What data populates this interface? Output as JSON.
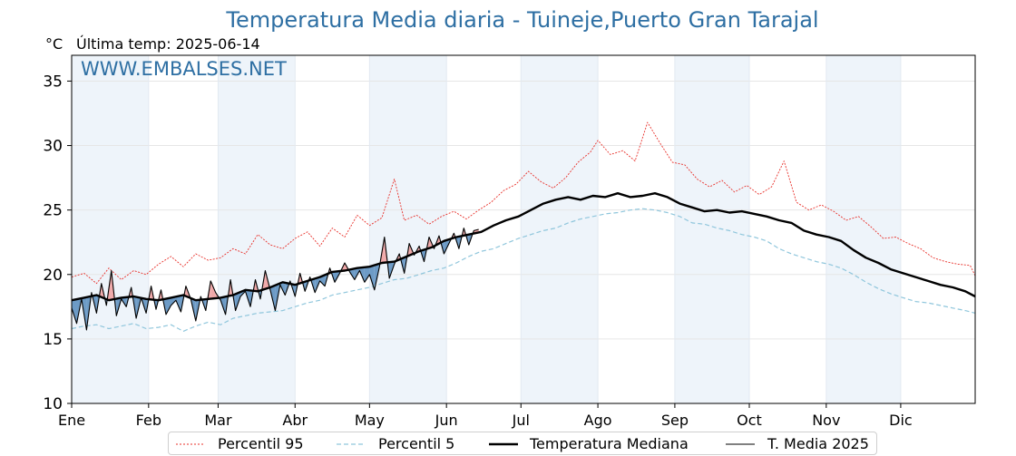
{
  "title": "Temperatura Media diaria - Tuineje,Puerto Gran Tarajal",
  "unit_label": "°C",
  "last_temp_label": "Última temp: 2025-06-14",
  "watermark": "WWW.EMBALSES.NET",
  "colors": {
    "title": "#2e6fa3",
    "p95": "#e8302a",
    "p5": "#8fc6dc",
    "median": "#000000",
    "current": "#000000",
    "fill_above": "#f0a8a8",
    "fill_below": "#6d9bc6",
    "band": "#eef4fa"
  },
  "legend": [
    {
      "label": "Percentil 95",
      "style": "p95"
    },
    {
      "label": "Percentil 5",
      "style": "p5"
    },
    {
      "label": "Temperatura Mediana",
      "style": "median"
    },
    {
      "label": "T. Media 2025",
      "style": "current"
    }
  ],
  "chart_data": {
    "type": "line",
    "title": "Temperatura Media diaria - Tuineje,Puerto Gran Tarajal",
    "ylabel": "°C",
    "ylim": [
      10,
      37
    ],
    "xlim": [
      1,
      365
    ],
    "yticks": [
      10,
      15,
      20,
      25,
      30,
      35
    ],
    "month_labels": [
      "Ene",
      "Feb",
      "Mar",
      "Abr",
      "May",
      "Jun",
      "Jul",
      "Ago",
      "Sep",
      "Oct",
      "Nov",
      "Dic"
    ],
    "month_start_days": [
      1,
      32,
      60,
      91,
      121,
      152,
      182,
      213,
      244,
      274,
      305,
      335
    ],
    "grid": true,
    "alternate_month_shading": true,
    "legend_position": "bottom",
    "series": [
      {
        "name": "Percentil 95",
        "style": "p95",
        "points": [
          [
            1,
            19.8
          ],
          [
            6,
            20.1
          ],
          [
            11,
            19.3
          ],
          [
            16,
            20.5
          ],
          [
            21,
            19.6
          ],
          [
            26,
            20.3
          ],
          [
            31,
            20.0
          ],
          [
            36,
            20.8
          ],
          [
            41,
            21.4
          ],
          [
            46,
            20.6
          ],
          [
            51,
            21.6
          ],
          [
            56,
            21.1
          ],
          [
            61,
            21.3
          ],
          [
            66,
            22.0
          ],
          [
            71,
            21.6
          ],
          [
            76,
            23.1
          ],
          [
            81,
            22.3
          ],
          [
            86,
            22.0
          ],
          [
            91,
            22.8
          ],
          [
            96,
            23.3
          ],
          [
            101,
            22.2
          ],
          [
            106,
            23.6
          ],
          [
            111,
            22.9
          ],
          [
            116,
            24.6
          ],
          [
            121,
            23.8
          ],
          [
            126,
            24.4
          ],
          [
            131,
            27.4
          ],
          [
            135,
            24.2
          ],
          [
            140,
            24.6
          ],
          [
            145,
            23.9
          ],
          [
            150,
            24.5
          ],
          [
            155,
            24.9
          ],
          [
            160,
            24.3
          ],
          [
            165,
            25.0
          ],
          [
            170,
            25.6
          ],
          [
            175,
            26.5
          ],
          [
            180,
            27.0
          ],
          [
            185,
            28.0
          ],
          [
            190,
            27.2
          ],
          [
            195,
            26.7
          ],
          [
            200,
            27.5
          ],
          [
            205,
            28.7
          ],
          [
            210,
            29.5
          ],
          [
            213,
            30.4
          ],
          [
            218,
            29.3
          ],
          [
            223,
            29.6
          ],
          [
            228,
            28.8
          ],
          [
            233,
            31.8
          ],
          [
            238,
            30.2
          ],
          [
            243,
            28.7
          ],
          [
            248,
            28.5
          ],
          [
            253,
            27.4
          ],
          [
            258,
            26.8
          ],
          [
            263,
            27.3
          ],
          [
            268,
            26.4
          ],
          [
            273,
            26.9
          ],
          [
            278,
            26.2
          ],
          [
            283,
            26.8
          ],
          [
            288,
            28.8
          ],
          [
            293,
            25.6
          ],
          [
            298,
            25.0
          ],
          [
            303,
            25.4
          ],
          [
            308,
            24.9
          ],
          [
            313,
            24.2
          ],
          [
            318,
            24.5
          ],
          [
            323,
            23.7
          ],
          [
            328,
            22.8
          ],
          [
            333,
            22.9
          ],
          [
            338,
            22.4
          ],
          [
            343,
            22.0
          ],
          [
            348,
            21.3
          ],
          [
            353,
            21.0
          ],
          [
            358,
            20.8
          ],
          [
            363,
            20.7
          ],
          [
            365,
            19.9
          ]
        ]
      },
      {
        "name": "Percentil 5",
        "style": "p5",
        "points": [
          [
            1,
            15.8
          ],
          [
            6,
            16.0
          ],
          [
            11,
            16.1
          ],
          [
            16,
            15.8
          ],
          [
            21,
            16.0
          ],
          [
            26,
            16.2
          ],
          [
            31,
            15.8
          ],
          [
            36,
            15.9
          ],
          [
            41,
            16.1
          ],
          [
            46,
            15.6
          ],
          [
            51,
            16.0
          ],
          [
            56,
            16.3
          ],
          [
            61,
            16.1
          ],
          [
            66,
            16.6
          ],
          [
            71,
            16.8
          ],
          [
            76,
            17.0
          ],
          [
            81,
            17.1
          ],
          [
            86,
            17.2
          ],
          [
            91,
            17.5
          ],
          [
            96,
            17.8
          ],
          [
            101,
            18.0
          ],
          [
            106,
            18.4
          ],
          [
            111,
            18.6
          ],
          [
            116,
            18.8
          ],
          [
            121,
            19.0
          ],
          [
            126,
            19.3
          ],
          [
            131,
            19.6
          ],
          [
            136,
            19.7
          ],
          [
            141,
            20.0
          ],
          [
            146,
            20.3
          ],
          [
            151,
            20.5
          ],
          [
            156,
            20.9
          ],
          [
            161,
            21.4
          ],
          [
            166,
            21.8
          ],
          [
            171,
            22.0
          ],
          [
            176,
            22.4
          ],
          [
            181,
            22.8
          ],
          [
            186,
            23.1
          ],
          [
            191,
            23.4
          ],
          [
            196,
            23.6
          ],
          [
            201,
            24.0
          ],
          [
            206,
            24.3
          ],
          [
            211,
            24.5
          ],
          [
            216,
            24.7
          ],
          [
            221,
            24.8
          ],
          [
            226,
            25.0
          ],
          [
            231,
            25.1
          ],
          [
            236,
            25.0
          ],
          [
            241,
            24.8
          ],
          [
            246,
            24.5
          ],
          [
            251,
            24.0
          ],
          [
            256,
            23.9
          ],
          [
            261,
            23.6
          ],
          [
            266,
            23.4
          ],
          [
            271,
            23.1
          ],
          [
            276,
            22.9
          ],
          [
            281,
            22.6
          ],
          [
            286,
            22.0
          ],
          [
            291,
            21.6
          ],
          [
            296,
            21.3
          ],
          [
            301,
            21.0
          ],
          [
            306,
            20.8
          ],
          [
            311,
            20.5
          ],
          [
            316,
            20.0
          ],
          [
            321,
            19.4
          ],
          [
            326,
            18.9
          ],
          [
            331,
            18.5
          ],
          [
            336,
            18.2
          ],
          [
            341,
            17.9
          ],
          [
            346,
            17.8
          ],
          [
            351,
            17.6
          ],
          [
            356,
            17.4
          ],
          [
            361,
            17.2
          ],
          [
            365,
            17.0
          ]
        ]
      },
      {
        "name": "Temperatura Mediana",
        "style": "median",
        "points": [
          [
            1,
            18.0
          ],
          [
            6,
            18.2
          ],
          [
            11,
            18.4
          ],
          [
            16,
            18.0
          ],
          [
            21,
            18.2
          ],
          [
            26,
            18.3
          ],
          [
            31,
            18.1
          ],
          [
            36,
            18.0
          ],
          [
            41,
            18.2
          ],
          [
            46,
            18.4
          ],
          [
            51,
            18.0
          ],
          [
            56,
            18.1
          ],
          [
            61,
            18.2
          ],
          [
            66,
            18.4
          ],
          [
            71,
            18.8
          ],
          [
            76,
            18.7
          ],
          [
            81,
            19.0
          ],
          [
            86,
            19.4
          ],
          [
            91,
            19.2
          ],
          [
            96,
            19.5
          ],
          [
            101,
            19.8
          ],
          [
            106,
            20.2
          ],
          [
            111,
            20.3
          ],
          [
            116,
            20.5
          ],
          [
            121,
            20.6
          ],
          [
            126,
            20.9
          ],
          [
            131,
            21.0
          ],
          [
            136,
            21.4
          ],
          [
            141,
            21.8
          ],
          [
            146,
            22.1
          ],
          [
            151,
            22.6
          ],
          [
            156,
            22.9
          ],
          [
            161,
            23.1
          ],
          [
            166,
            23.3
          ],
          [
            171,
            23.8
          ],
          [
            176,
            24.2
          ],
          [
            181,
            24.5
          ],
          [
            186,
            25.0
          ],
          [
            191,
            25.5
          ],
          [
            196,
            25.8
          ],
          [
            201,
            26.0
          ],
          [
            206,
            25.8
          ],
          [
            211,
            26.1
          ],
          [
            216,
            26.0
          ],
          [
            221,
            26.3
          ],
          [
            226,
            26.0
          ],
          [
            231,
            26.1
          ],
          [
            236,
            26.3
          ],
          [
            241,
            26.0
          ],
          [
            246,
            25.5
          ],
          [
            251,
            25.2
          ],
          [
            256,
            24.9
          ],
          [
            261,
            25.0
          ],
          [
            266,
            24.8
          ],
          [
            271,
            24.9
          ],
          [
            276,
            24.7
          ],
          [
            281,
            24.5
          ],
          [
            286,
            24.2
          ],
          [
            291,
            24.0
          ],
          [
            296,
            23.4
          ],
          [
            301,
            23.1
          ],
          [
            306,
            22.9
          ],
          [
            311,
            22.6
          ],
          [
            316,
            21.9
          ],
          [
            321,
            21.3
          ],
          [
            326,
            20.9
          ],
          [
            331,
            20.4
          ],
          [
            336,
            20.1
          ],
          [
            341,
            19.8
          ],
          [
            346,
            19.5
          ],
          [
            351,
            19.2
          ],
          [
            356,
            19.0
          ],
          [
            361,
            18.7
          ],
          [
            365,
            18.3
          ]
        ]
      },
      {
        "name": "T. Media 2025",
        "style": "current",
        "points": [
          [
            1,
            17.4
          ],
          [
            3,
            16.2
          ],
          [
            5,
            18.1
          ],
          [
            7,
            15.7
          ],
          [
            9,
            18.6
          ],
          [
            11,
            17.0
          ],
          [
            13,
            19.3
          ],
          [
            15,
            17.6
          ],
          [
            17,
            20.3
          ],
          [
            19,
            16.8
          ],
          [
            21,
            18.1
          ],
          [
            23,
            17.5
          ],
          [
            25,
            19.0
          ],
          [
            27,
            16.6
          ],
          [
            29,
            18.2
          ],
          [
            31,
            17.0
          ],
          [
            33,
            19.1
          ],
          [
            35,
            17.3
          ],
          [
            37,
            18.8
          ],
          [
            39,
            16.9
          ],
          [
            41,
            17.6
          ],
          [
            43,
            18.0
          ],
          [
            45,
            17.1
          ],
          [
            47,
            19.1
          ],
          [
            49,
            18.1
          ],
          [
            51,
            16.4
          ],
          [
            53,
            18.3
          ],
          [
            55,
            17.2
          ],
          [
            57,
            19.5
          ],
          [
            59,
            18.6
          ],
          [
            61,
            18.0
          ],
          [
            63,
            16.9
          ],
          [
            65,
            19.6
          ],
          [
            67,
            17.2
          ],
          [
            69,
            18.3
          ],
          [
            71,
            18.7
          ],
          [
            73,
            17.5
          ],
          [
            75,
            19.6
          ],
          [
            77,
            18.1
          ],
          [
            79,
            20.3
          ],
          [
            81,
            18.8
          ],
          [
            83,
            17.2
          ],
          [
            85,
            19.2
          ],
          [
            87,
            18.4
          ],
          [
            89,
            19.5
          ],
          [
            91,
            18.3
          ],
          [
            93,
            20.1
          ],
          [
            95,
            18.7
          ],
          [
            97,
            19.8
          ],
          [
            99,
            18.6
          ],
          [
            101,
            19.5
          ],
          [
            103,
            19.1
          ],
          [
            105,
            20.5
          ],
          [
            107,
            19.4
          ],
          [
            109,
            20.1
          ],
          [
            111,
            20.9
          ],
          [
            113,
            20.2
          ],
          [
            115,
            19.6
          ],
          [
            117,
            20.3
          ],
          [
            119,
            19.4
          ],
          [
            121,
            20.0
          ],
          [
            123,
            18.8
          ],
          [
            125,
            20.6
          ],
          [
            127,
            22.9
          ],
          [
            129,
            19.7
          ],
          [
            131,
            20.8
          ],
          [
            133,
            21.6
          ],
          [
            135,
            20.1
          ],
          [
            137,
            22.4
          ],
          [
            139,
            21.5
          ],
          [
            141,
            22.2
          ],
          [
            143,
            21.0
          ],
          [
            145,
            22.9
          ],
          [
            147,
            22.0
          ],
          [
            149,
            23.0
          ],
          [
            151,
            21.6
          ],
          [
            153,
            22.4
          ],
          [
            155,
            23.2
          ],
          [
            157,
            22.0
          ],
          [
            159,
            23.6
          ],
          [
            161,
            22.3
          ],
          [
            163,
            23.4
          ],
          [
            165,
            23.5
          ]
        ]
      }
    ]
  }
}
